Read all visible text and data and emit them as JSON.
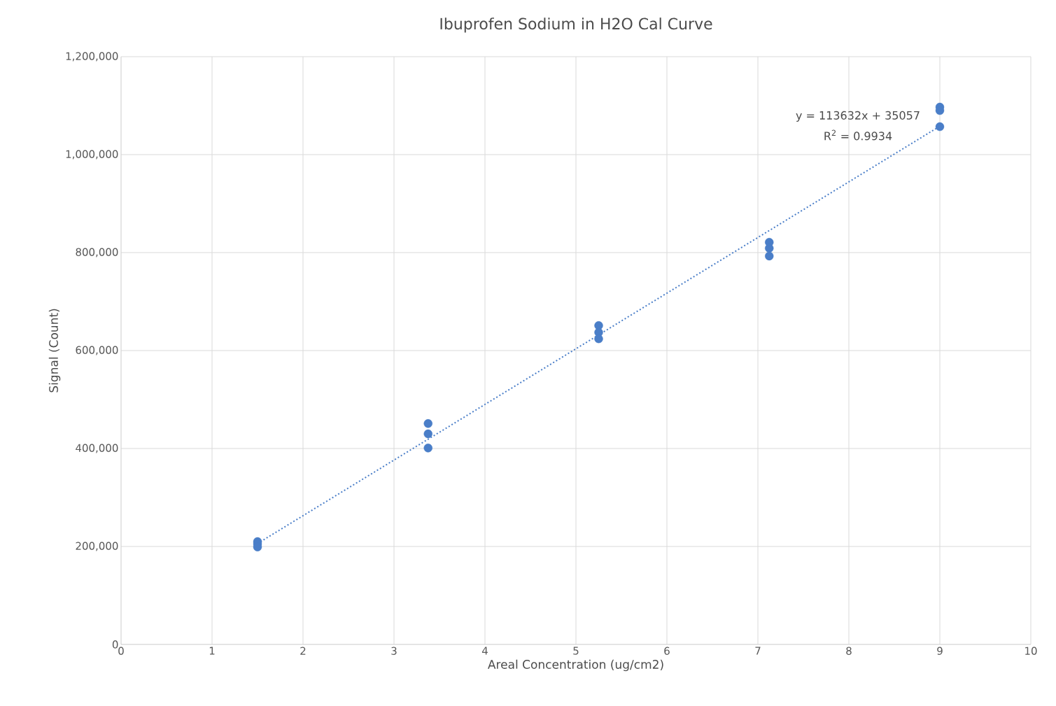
{
  "chart_data": {
    "type": "scatter",
    "title": "Ibuprofen Sodium in H2O Cal Curve",
    "xlabel": "Areal Concentration (ug/cm2)",
    "ylabel": "Signal (Count)",
    "xlim": [
      0,
      10
    ],
    "ylim": [
      0,
      1200000
    ],
    "xticks": [
      0,
      1,
      2,
      3,
      4,
      5,
      6,
      7,
      8,
      9,
      10
    ],
    "yticks": [
      {
        "value": 0,
        "label": "0"
      },
      {
        "value": 200000,
        "label": "200,000"
      },
      {
        "value": 400000,
        "label": "400,000"
      },
      {
        "value": 600000,
        "label": "600,000"
      },
      {
        "value": 800000,
        "label": "800,000"
      },
      {
        "value": 1000000,
        "label": "1,000,000"
      },
      {
        "value": 1200000,
        "label": "1,200,000"
      }
    ],
    "grid": true,
    "marker": "circle",
    "series": [
      {
        "color": "#4a7ec8",
        "x": [
          1.5,
          1.5,
          1.5,
          3.375,
          3.375,
          3.375,
          5.25,
          5.25,
          5.25,
          7.125,
          7.125,
          7.125,
          9,
          9,
          9
        ],
        "values": [
          210000,
          205000,
          199000,
          451000,
          430000,
          401000,
          651000,
          637000,
          624000,
          821000,
          809000,
          793000,
          1097000,
          1090000,
          1057000
        ]
      },
      {
        "type": "line",
        "color": "#4a7ec8",
        "line_style": "dotted",
        "marker": "none",
        "x": [
          1.5,
          9
        ],
        "values": [
          206000,
          1058000
        ]
      }
    ],
    "annotations": [
      "y = 113632x + 35057",
      "R$^{2}$ = 0.9934"
    ]
  }
}
